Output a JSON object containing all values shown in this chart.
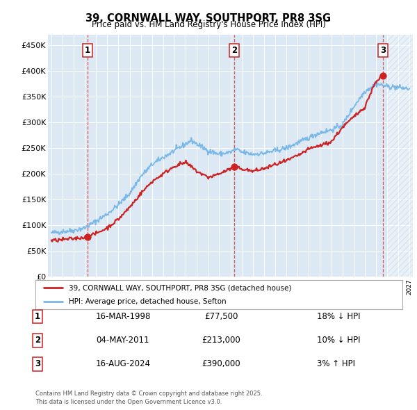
{
  "title1": "39, CORNWALL WAY, SOUTHPORT, PR8 3SG",
  "title2": "Price paid vs. HM Land Registry's House Price Index (HPI)",
  "ylim": [
    0,
    470000
  ],
  "yticks": [
    0,
    50000,
    100000,
    150000,
    200000,
    250000,
    300000,
    350000,
    400000,
    450000
  ],
  "ytick_labels": [
    "£0",
    "£50K",
    "£100K",
    "£150K",
    "£200K",
    "£250K",
    "£300K",
    "£350K",
    "£400K",
    "£450K"
  ],
  "xlim_start": 1994.7,
  "xlim_end": 2027.3,
  "plot_bg_color": "#dce9f5",
  "hpi_color": "#7ab8e8",
  "price_color": "#cc2222",
  "sale1_x": 1998.21,
  "sale1_y": 77500,
  "sale2_x": 2011.34,
  "sale2_y": 213000,
  "sale3_x": 2024.62,
  "sale3_y": 390000,
  "legend_label1": "39, CORNWALL WAY, SOUTHPORT, PR8 3SG (detached house)",
  "legend_label2": "HPI: Average price, detached house, Sefton",
  "table_rows": [
    [
      "1",
      "16-MAR-1998",
      "£77,500",
      "18% ↓ HPI"
    ],
    [
      "2",
      "04-MAY-2011",
      "£213,000",
      "10% ↓ HPI"
    ],
    [
      "3",
      "16-AUG-2024",
      "£390,000",
      "3% ↑ HPI"
    ]
  ],
  "footnote": "Contains HM Land Registry data © Crown copyright and database right 2025.\nThis data is licensed under the Open Government Licence v3.0.",
  "hatch_start": 2025.0,
  "grid_color": "white",
  "hpi_anchors_x": [
    1995,
    1996,
    1997,
    1998,
    1999,
    2000,
    2001,
    2002,
    2003,
    2004,
    2005,
    2006,
    2007,
    2007.5,
    2008,
    2009,
    2010,
    2011,
    2011.5,
    2012,
    2013,
    2014,
    2015,
    2016,
    2017,
    2018,
    2019,
    2020,
    2021,
    2022,
    2023,
    2024,
    2025,
    2026,
    2027
  ],
  "hpi_anchors_y": [
    85000,
    88000,
    90000,
    95000,
    108000,
    122000,
    140000,
    162000,
    195000,
    218000,
    232000,
    245000,
    258000,
    265000,
    258000,
    245000,
    238000,
    242000,
    248000,
    242000,
    238000,
    240000,
    245000,
    250000,
    260000,
    270000,
    280000,
    285000,
    295000,
    330000,
    360000,
    375000,
    370000,
    368000,
    365000
  ],
  "price_anchors_x": [
    1995,
    1996,
    1997,
    1998.21,
    1999,
    2000,
    2001,
    2002,
    2003,
    2004,
    2005,
    2006,
    2007,
    2008,
    2009,
    2010,
    2011.34,
    2012,
    2013,
    2014,
    2015,
    2016,
    2017,
    2018,
    2019,
    2020,
    2021,
    2022,
    2023,
    2024,
    2024.62
  ],
  "price_anchors_y": [
    70000,
    72000,
    74000,
    77500,
    84000,
    95000,
    112000,
    135000,
    162000,
    185000,
    200000,
    215000,
    222000,
    205000,
    193000,
    200000,
    213000,
    210000,
    205000,
    210000,
    218000,
    225000,
    235000,
    248000,
    255000,
    262000,
    290000,
    310000,
    330000,
    380000,
    390000
  ]
}
